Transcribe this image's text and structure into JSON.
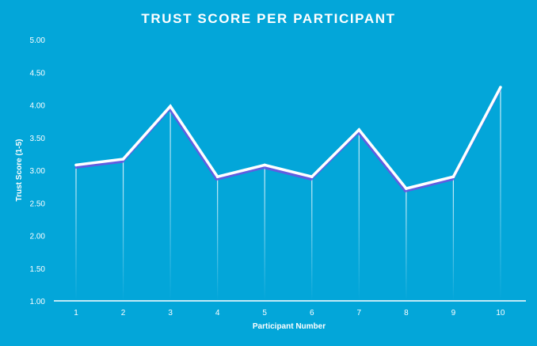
{
  "chart_data": {
    "type": "line",
    "title": "TRUST SCORE PER PARTICIPANT",
    "xlabel": "Participant Number",
    "ylabel": "Trust Score (1-5)",
    "categories": [
      "1",
      "2",
      "3",
      "4",
      "5",
      "6",
      "7",
      "8",
      "9",
      "10"
    ],
    "series": [
      {
        "values": [
          3.08,
          3.17,
          3.98,
          2.9,
          3.08,
          2.9,
          3.62,
          2.72,
          2.9,
          4.27
        ]
      }
    ],
    "ylim": [
      1.0,
      5.0
    ],
    "yticks": [
      "1.00",
      "1.50",
      "2.00",
      "2.50",
      "3.00",
      "3.50",
      "4.00",
      "4.50",
      "5.00"
    ],
    "grid": false,
    "drop_lines": true,
    "colors": {
      "background": "#03a6d9",
      "line": "#ffffff",
      "shadow": "#6a55e0",
      "axis": "#ffffff"
    }
  }
}
